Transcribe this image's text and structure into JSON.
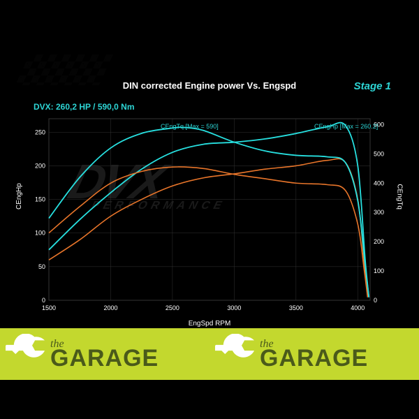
{
  "chart": {
    "title": "DIN corrected Engine power Vs. Engspd",
    "stage_label": "Stage 1",
    "subtitle": "DVX:  260,2 HP / 590,0 Nm",
    "xlabel": "EngSpd RPM",
    "ylabel_left": "CEngHp",
    "ylabel_right": "CEngTq",
    "annotation_tq": "CEngTq [Max = 590]",
    "annotation_hp": "CEngHp [Max = 260.2]",
    "background_color": "#000000",
    "grid_color": "#333333",
    "axis_color": "#ffffff",
    "text_color": "#ffffff",
    "accent_color": "#2dd4d4",
    "x_axis": {
      "min": 1500,
      "max": 4100,
      "ticks": [
        1500,
        2000,
        2500,
        3000,
        3500,
        4000
      ]
    },
    "y_left": {
      "min": 0,
      "max": 270,
      "ticks": [
        0,
        50,
        100,
        150,
        200,
        250
      ]
    },
    "y_right": {
      "min": 0,
      "max": 620,
      "ticks": [
        0,
        100,
        200,
        300,
        400,
        500,
        600
      ]
    },
    "series": [
      {
        "name": "hp_stock",
        "axis": "left",
        "color": "#e8752a",
        "width": 1.6,
        "points": [
          [
            1500,
            60
          ],
          [
            1750,
            90
          ],
          [
            2000,
            125
          ],
          [
            2250,
            150
          ],
          [
            2500,
            170
          ],
          [
            2750,
            182
          ],
          [
            3000,
            188
          ],
          [
            3250,
            195
          ],
          [
            3500,
            200
          ],
          [
            3750,
            208
          ],
          [
            3900,
            205
          ],
          [
            4000,
            150
          ],
          [
            4050,
            60
          ],
          [
            4080,
            5
          ]
        ]
      },
      {
        "name": "hp_tuned",
        "axis": "left",
        "color": "#27e0e0",
        "width": 1.8,
        "points": [
          [
            1500,
            75
          ],
          [
            1750,
            120
          ],
          [
            2000,
            160
          ],
          [
            2250,
            195
          ],
          [
            2500,
            220
          ],
          [
            2750,
            232
          ],
          [
            3000,
            235
          ],
          [
            3250,
            240
          ],
          [
            3500,
            248
          ],
          [
            3750,
            258
          ],
          [
            3900,
            260
          ],
          [
            4000,
            200
          ],
          [
            4060,
            60
          ],
          [
            4090,
            5
          ]
        ]
      },
      {
        "name": "tq_stock",
        "axis": "right",
        "color": "#e8752a",
        "width": 1.6,
        "points": [
          [
            1500,
            230
          ],
          [
            1750,
            320
          ],
          [
            2000,
            400
          ],
          [
            2250,
            440
          ],
          [
            2500,
            455
          ],
          [
            2750,
            450
          ],
          [
            3000,
            430
          ],
          [
            3250,
            415
          ],
          [
            3500,
            400
          ],
          [
            3750,
            395
          ],
          [
            3900,
            375
          ],
          [
            4000,
            260
          ],
          [
            4050,
            110
          ],
          [
            4080,
            10
          ]
        ]
      },
      {
        "name": "tq_tuned",
        "axis": "right",
        "color": "#27e0e0",
        "width": 1.8,
        "points": [
          [
            1500,
            280
          ],
          [
            1750,
            420
          ],
          [
            2000,
            520
          ],
          [
            2250,
            570
          ],
          [
            2500,
            588
          ],
          [
            2600,
            590
          ],
          [
            2750,
            580
          ],
          [
            3000,
            540
          ],
          [
            3250,
            510
          ],
          [
            3500,
            495
          ],
          [
            3750,
            490
          ],
          [
            3900,
            470
          ],
          [
            4000,
            340
          ],
          [
            4060,
            120
          ],
          [
            4090,
            10
          ]
        ]
      }
    ]
  },
  "footer": {
    "bg_color": "#c3d82e",
    "logo_text_small": "the",
    "logo_text_big": "GARAGE"
  },
  "watermark": {
    "main": "DVX",
    "sub": "PERFORMANCE"
  }
}
